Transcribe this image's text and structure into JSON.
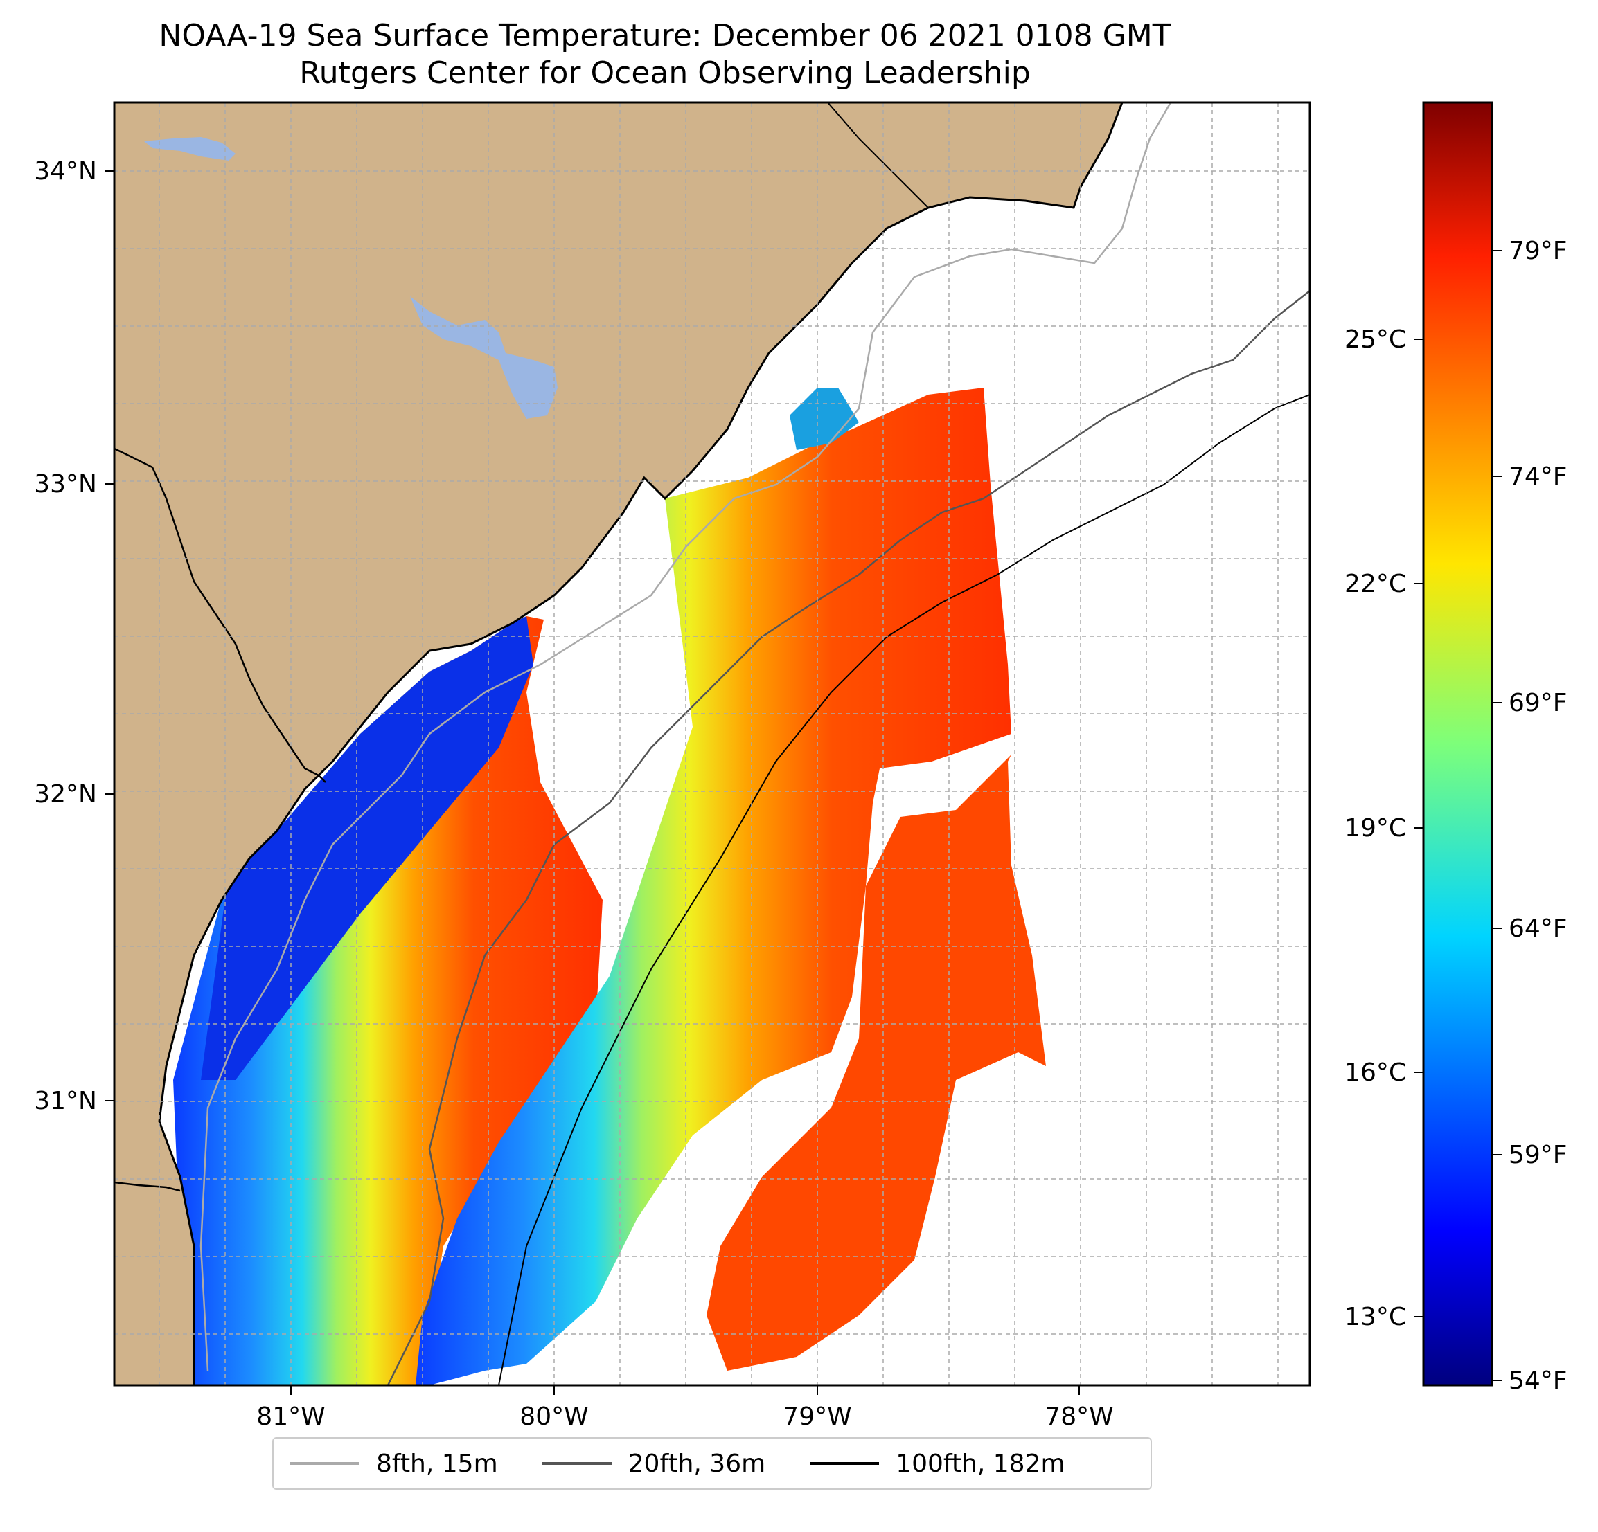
{
  "title": {
    "line1": "NOAA-19 Sea Surface Temperature: December 06 2021 0108 GMT",
    "line2": "Rutgers Center for Ocean Observing Leadership"
  },
  "colors": {
    "land": "#d0b38b",
    "water_body": "#9ab6e3",
    "no_data": "#ffffff",
    "grid": "#aaaaaa",
    "contour_8fth": "#aaaaaa",
    "contour_20fth": "#555555",
    "contour_100fth": "#000000"
  },
  "map": {
    "lat_labels": [
      "34°N",
      "33°N",
      "32°N",
      "31°N"
    ],
    "lon_labels": [
      "81°W",
      "80°W",
      "79°W",
      "78°W"
    ]
  },
  "colorbar": {
    "celsius_labels": [
      "25°C",
      "22°C",
      "19°C",
      "16°C",
      "13°C"
    ],
    "fahrenheit_labels": [
      "79°F",
      "74°F",
      "69°F",
      "64°F",
      "59°F",
      "54°F"
    ]
  },
  "legend": [
    {
      "label": "8fth, 15m",
      "color": "#aaaaaa"
    },
    {
      "label": "20fth, 36m",
      "color": "#555555"
    },
    {
      "label": "100fth, 182m",
      "color": "#000000"
    }
  ]
}
